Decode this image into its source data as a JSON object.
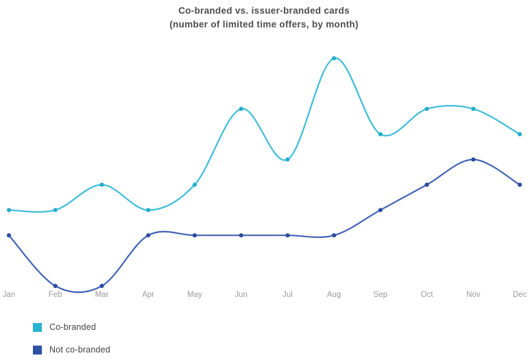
{
  "chart_data": {
    "type": "line",
    "title": "Co-branded vs. issuer-branded cards",
    "subtitle": "(number of limited time offers, by month)",
    "categories": [
      "Jan",
      "Feb",
      "Mar",
      "Apr",
      "May",
      "Jun",
      "Jul",
      "Aug",
      "Sep",
      "Oct",
      "Nov",
      "Dec"
    ],
    "series": [
      {
        "name": "Co-branded",
        "color": "#3bbcd9",
        "marker_color": "#25accd",
        "values": [
          4,
          4,
          5,
          4,
          5,
          8,
          6,
          10,
          7,
          8,
          8,
          7
        ]
      },
      {
        "name": "Not co-branded",
        "color": "#4062b4",
        "marker_color": "#2d4ba0",
        "values": [
          3,
          1,
          1,
          3,
          3,
          3,
          3,
          3,
          4,
          5,
          6,
          5
        ]
      }
    ],
    "y_axis": {
      "visible": false,
      "min": 1,
      "max": 10
    },
    "x_axis": {
      "visible_labels": true,
      "label_color": "#9a9a9a"
    },
    "grid": false,
    "legend_position": "bottom-left",
    "curve": "smooth-spline",
    "background": "#ffffff",
    "title_color": "#4c4c4c"
  }
}
